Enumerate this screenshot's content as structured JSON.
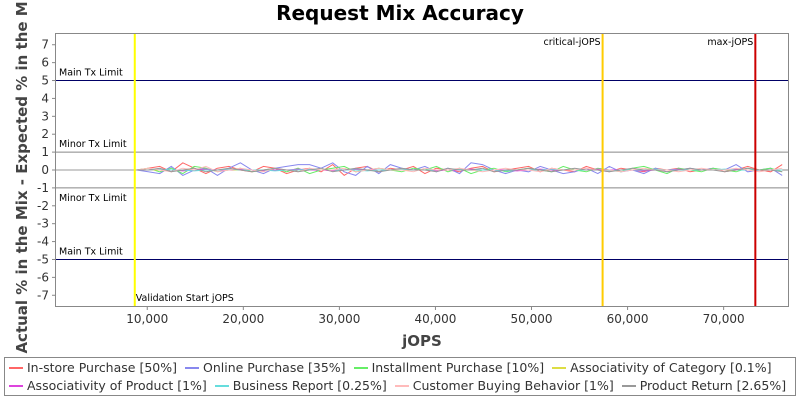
{
  "chart_data": {
    "type": "line",
    "title": "Request Mix Accuracy",
    "xlabel": "jOPS",
    "ylabel": "Actual % in the Mix - Expected % in the Mix",
    "xlim": [
      500,
      76700
    ],
    "ylim": [
      -7.6,
      7.6
    ],
    "x_ticks": [
      10000,
      20000,
      30000,
      40000,
      50000,
      60000,
      70000
    ],
    "x_tick_labels": [
      "10,000",
      "20,000",
      "30,000",
      "40,000",
      "50,000",
      "60,000",
      "70,000"
    ],
    "y_ticks": [
      7,
      6,
      5,
      4,
      3,
      2,
      1,
      0,
      -1,
      -2,
      -3,
      -4,
      -5,
      -6,
      -7
    ],
    "y_tick_labels": [
      "7",
      "6",
      "5",
      "4",
      "3",
      "2",
      "1",
      "0",
      "-1",
      "-2",
      "-3",
      "-4",
      "-5",
      "-6",
      "-7"
    ],
    "grid": false,
    "legend_position": "bottom",
    "horizontal_lines": [
      {
        "label": "Main Tx Limit",
        "y": 5,
        "color": "#000066",
        "label_side": "above"
      },
      {
        "label": "Minor Tx Limit",
        "y": 1,
        "color": "#888888",
        "label_side": "above"
      },
      {
        "label": "",
        "y": 0,
        "color": "#888888",
        "label_side": "none"
      },
      {
        "label": "Minor Tx Limit",
        "y": -1,
        "color": "#888888",
        "label_side": "below"
      },
      {
        "label": "Main Tx Limit",
        "y": -5,
        "color": "#000066",
        "label_side": "above"
      }
    ],
    "vertical_lines": [
      {
        "label": "Validation Start jOPS",
        "x": 8700,
        "color": "#ffff00",
        "label_pos": "bottom"
      },
      {
        "label": "critical-jOPS",
        "x": 57400,
        "color": "#ffcc00",
        "label_pos": "top"
      },
      {
        "label": "max-jOPS",
        "x": 73300,
        "color": "#cc0000",
        "label_pos": "top"
      }
    ],
    "x": [
      500,
      1700,
      2900,
      4100,
      5300,
      6500,
      7700,
      8900,
      10100,
      11300,
      12500,
      13700,
      14900,
      16100,
      17300,
      18500,
      19700,
      20900,
      22100,
      23300,
      24500,
      25700,
      26900,
      28100,
      29300,
      30500,
      31700,
      32900,
      34100,
      35300,
      36500,
      37700,
      38900,
      40100,
      41300,
      42500,
      43700,
      44900,
      46100,
      47300,
      48500,
      49700,
      50900,
      52100,
      53300,
      54500,
      55700,
      56900,
      58100,
      59300,
      60500,
      61700,
      62900,
      64100,
      65300,
      66500,
      67700,
      68900,
      70100,
      71300,
      72500,
      73700,
      74900,
      76100
    ],
    "series": [
      {
        "name": "In-store Purchase [50%]",
        "color": "#ff6666",
        "values": [
          0,
          0,
          0,
          0,
          0,
          0,
          0,
          0,
          0.1,
          0.2,
          -0.1,
          0.4,
          0.1,
          -0.2,
          0.1,
          0.2,
          0,
          -0.1,
          0.2,
          0.1,
          -0.2,
          0,
          0.1,
          -0.1,
          0.3,
          -0.3,
          0.1,
          0.2,
          -0.1,
          0.1,
          0,
          0.2,
          -0.2,
          0.1,
          0,
          -0.1,
          0.1,
          0.2,
          -0.1,
          0,
          0.1,
          0.2,
          -0.1,
          0.1,
          0,
          -0.1,
          0.2,
          0,
          -0.1,
          0.1,
          0,
          -0.1,
          0.1,
          0,
          0.1,
          -0.1,
          0,
          0.1,
          -0.1,
          0,
          0.2,
          0,
          -0.1,
          0.3
        ]
      },
      {
        "name": "Online Purchase [35%]",
        "color": "#8888ee",
        "values": [
          0,
          0,
          0,
          0,
          0,
          0,
          0,
          0,
          -0.1,
          -0.2,
          0.2,
          -0.3,
          0,
          0.1,
          -0.3,
          0.1,
          0.4,
          0,
          -0.2,
          0.1,
          0.2,
          0.3,
          0.3,
          0.1,
          0.4,
          -0.1,
          -0.3,
          0.2,
          -0.2,
          0.3,
          0.1,
          0,
          0.2,
          -0.1,
          0.1,
          -0.2,
          0.4,
          0.3,
          0,
          -0.2,
          0,
          -0.1,
          0.2,
          0,
          -0.2,
          -0.1,
          0.1,
          -0.2,
          0.2,
          -0.1,
          0,
          -0.2,
          0.1,
          -0.1,
          0,
          0.1,
          0,
          0.1,
          0,
          0.3,
          -0.1,
          0,
          0.1,
          -0.3
        ]
      },
      {
        "name": "Installment Purchase [10%]",
        "color": "#66ee66",
        "values": [
          0,
          0,
          0,
          0,
          0,
          0,
          0,
          0,
          0.1,
          -0.1,
          0.1,
          -0.2,
          0.2,
          0.1,
          -0.1,
          0,
          0.1,
          -0.1,
          0,
          0.1,
          -0.1,
          0.1,
          -0.2,
          0,
          0.1,
          0.2,
          -0.1,
          0,
          0.1,
          0,
          -0.1,
          0.1,
          0,
          0.2,
          -0.1,
          0.1,
          -0.2,
          0,
          0.1,
          -0.1,
          0,
          0.1,
          0,
          -0.1,
          0.2,
          0,
          -0.1,
          0.1,
          0,
          -0.1,
          0.1,
          0.2,
          0,
          -0.2,
          0.1,
          0,
          -0.1,
          0.1,
          0,
          -0.1,
          0.1,
          0,
          0.1,
          -0.1
        ]
      },
      {
        "name": "Associativity of Category [0.1%]",
        "color": "#dddd44",
        "values": [
          0,
          0,
          0,
          0,
          0,
          0,
          0,
          0,
          0,
          0,
          0,
          0,
          0,
          0,
          0,
          0,
          0,
          0,
          0,
          0,
          0,
          0,
          0,
          0,
          0,
          0,
          0,
          0,
          0,
          0,
          0,
          0,
          0,
          0,
          0,
          0,
          0,
          0,
          0,
          0,
          0,
          0,
          0,
          0,
          0,
          0,
          0,
          0,
          0,
          0,
          0,
          0,
          0,
          0,
          0,
          0,
          0,
          0,
          0,
          0,
          0,
          0,
          0,
          0
        ]
      },
      {
        "name": "Associativity of Product [1%]",
        "color": "#dd44dd",
        "values": [
          0,
          0,
          0,
          0,
          0,
          0,
          0,
          0,
          0,
          0.05,
          0,
          -0.05,
          0,
          0.05,
          0,
          0,
          0.05,
          0,
          -0.05,
          0,
          0,
          0.05,
          0,
          0,
          -0.05,
          0,
          0.05,
          0,
          0,
          0,
          0.05,
          0,
          0,
          -0.05,
          0,
          0,
          0.05,
          0,
          0,
          0,
          -0.05,
          0,
          0.05,
          0,
          0,
          0,
          0,
          0.05,
          0,
          0,
          0,
          -0.05,
          0,
          0,
          0.05,
          0,
          0,
          0,
          0,
          0.05,
          0,
          0,
          0,
          0
        ]
      },
      {
        "name": "Business Report [0.25%]",
        "color": "#66dddd",
        "values": [
          0,
          0,
          0,
          0,
          0,
          0,
          0,
          0,
          0,
          0.05,
          0,
          0,
          -0.05,
          0,
          0,
          0.05,
          0,
          0,
          0,
          -0.05,
          0,
          0,
          0.05,
          0,
          0,
          0,
          0,
          -0.05,
          0,
          0,
          0.05,
          0,
          0,
          0,
          0,
          0.05,
          0,
          0,
          0,
          -0.05,
          0,
          0,
          0,
          0.05,
          0,
          0,
          0,
          0,
          -0.05,
          0,
          0,
          0,
          0.05,
          0,
          0,
          0,
          0,
          0,
          0.05,
          0,
          0,
          0,
          0,
          0
        ]
      },
      {
        "name": "Customer Buying Behavior [1%]",
        "color": "#ffbbbb",
        "values": [
          0,
          0,
          0,
          0,
          0,
          0,
          0,
          0,
          0.1,
          0,
          -0.1,
          0.1,
          0,
          0.2,
          -0.1,
          0,
          0.1,
          0,
          -0.1,
          0.1,
          0,
          -0.1,
          0.1,
          0,
          0,
          0.1,
          -0.1,
          0,
          0.1,
          0,
          0,
          -0.1,
          0.1,
          0,
          0,
          0.1,
          0,
          -0.1,
          0,
          0.1,
          0,
          0,
          -0.1,
          0.1,
          0,
          0,
          0.1,
          0,
          0,
          -0.1,
          0,
          0.1,
          0,
          0,
          -0.1,
          0,
          0.1,
          0,
          0,
          0.1,
          0,
          -0.1,
          0,
          0.1
        ]
      },
      {
        "name": "Product Return [2.65%]",
        "color": "#999999",
        "values": [
          0,
          0,
          0,
          0,
          0,
          0,
          0,
          0,
          0,
          0.1,
          -0.1,
          0,
          0.1,
          -0.1,
          0,
          0.1,
          0,
          -0.1,
          0,
          0.1,
          0,
          -0.1,
          0,
          0.1,
          -0.1,
          0,
          0.1,
          0,
          -0.1,
          0,
          0.1,
          0,
          0,
          -0.1,
          0.1,
          0,
          0,
          0.1,
          -0.1,
          0,
          0,
          0.1,
          0,
          -0.1,
          0,
          0.1,
          0,
          0,
          -0.1,
          0,
          0.1,
          0,
          0,
          -0.1,
          0,
          0.1,
          0,
          0,
          -0.1,
          0,
          0.1,
          0,
          0,
          -0.1
        ]
      }
    ]
  }
}
